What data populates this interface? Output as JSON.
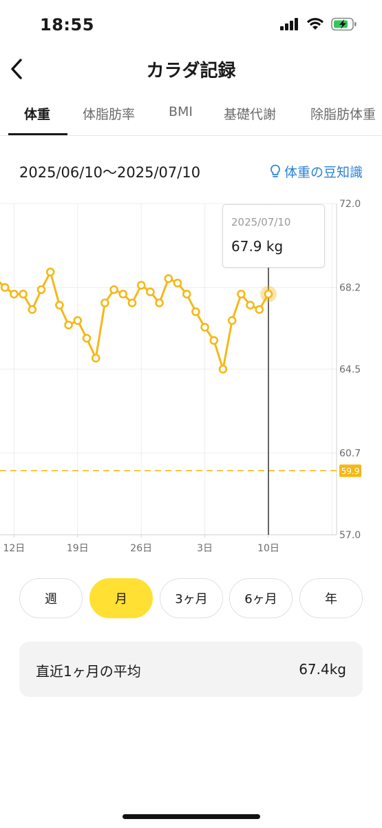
{
  "status": {
    "time": "18:55"
  },
  "nav": {
    "title": "カラダ記録"
  },
  "tabs": [
    {
      "label": "体重",
      "active": true
    },
    {
      "label": "体脂肪率",
      "active": false
    },
    {
      "label": "BMI",
      "active": false
    },
    {
      "label": "基礎代謝",
      "active": false
    },
    {
      "label": "除脂肪体重",
      "active": false
    }
  ],
  "range": {
    "text": "2025/06/10〜2025/07/10",
    "tips": "体重の豆知識"
  },
  "tooltip": {
    "date": "2025/07/10",
    "value": "67.9 kg"
  },
  "periods": [
    {
      "label": "週",
      "active": false
    },
    {
      "label": "月",
      "active": true
    },
    {
      "label": "3ヶ月",
      "active": false
    },
    {
      "label": "6ヶ月",
      "active": false
    },
    {
      "label": "年",
      "active": false
    }
  ],
  "average": {
    "label": "直近1ヶ月の平均",
    "value": "67.4kg"
  },
  "colors": {
    "accent": "#ffe033",
    "line": "#f5b818",
    "link": "#2a82d6",
    "target": "#f5b818"
  },
  "chart_data": {
    "type": "line",
    "y_ticks": [
      "72.0",
      "68.2",
      "64.5",
      "60.7",
      "57.0"
    ],
    "y_tick_values": [
      72.0,
      68.2,
      64.5,
      60.7,
      57.0
    ],
    "ylim": [
      57.0,
      72.0
    ],
    "x_ticks": [
      "12日",
      "19日",
      "26日",
      "3日",
      "10日"
    ],
    "x_tick_days": [
      2,
      9,
      16,
      23,
      30
    ],
    "xlim": [
      0,
      37
    ],
    "target_label": "59.9",
    "target_value": 59.9,
    "selected_day": 30,
    "grid": true,
    "series": [
      {
        "x": [
          0,
          1,
          2,
          3,
          4,
          5,
          6,
          7,
          8,
          9,
          10,
          11,
          12,
          13,
          14,
          15,
          16,
          17,
          18,
          19,
          20,
          21,
          22,
          23,
          24,
          25,
          26,
          27,
          28,
          29,
          30
        ],
        "values": [
          68.6,
          68.2,
          67.9,
          67.9,
          67.2,
          68.1,
          68.9,
          67.4,
          66.5,
          66.7,
          65.9,
          65.0,
          67.5,
          68.1,
          67.9,
          67.5,
          68.3,
          68.0,
          67.5,
          68.6,
          68.4,
          67.9,
          67.1,
          66.4,
          65.8,
          64.5,
          66.7,
          67.9,
          67.4,
          67.2,
          67.9
        ]
      }
    ]
  }
}
